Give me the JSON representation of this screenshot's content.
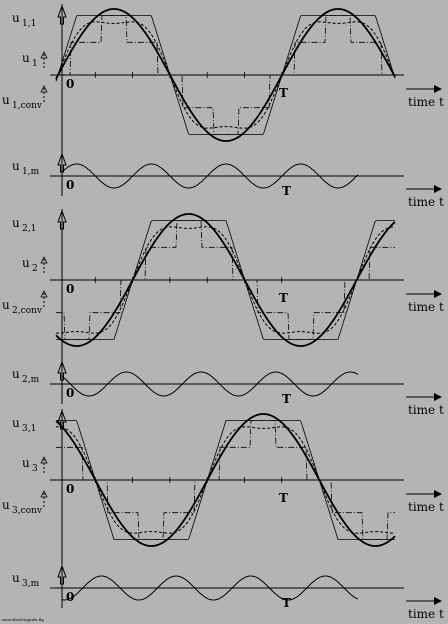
{
  "colors": {
    "background": "#b4b4b4",
    "ink": "#000000"
  },
  "time_axis_label": "time  t",
  "origin_label": "0",
  "period_label": "T",
  "footer_filename": "smoothed-signals.fig",
  "signal_panels": [
    {
      "id": "1",
      "label_main": "u",
      "sub_main": "1,1",
      "label_mid": "u",
      "sub_mid": "1",
      "label_conv": "u",
      "sub_conv": "1,conv",
      "phase": 0
    },
    {
      "id": "2",
      "label_main": "u",
      "sub_main": "2,1",
      "label_mid": "u",
      "sub_mid": "2",
      "label_conv": "u",
      "sub_conv": "2,conv",
      "phase": 120
    },
    {
      "id": "3",
      "label_main": "u",
      "sub_main": "3,1",
      "label_mid": "u",
      "sub_mid": "3",
      "label_conv": "u",
      "sub_conv": "3,conv",
      "phase": 240
    }
  ],
  "ripple_panels": [
    {
      "id": "1",
      "label": "u",
      "sub": "1,m"
    },
    {
      "id": "2",
      "label": "u",
      "sub": "2,m"
    },
    {
      "id": "3",
      "label": "u",
      "sub": "3,m"
    }
  ]
}
